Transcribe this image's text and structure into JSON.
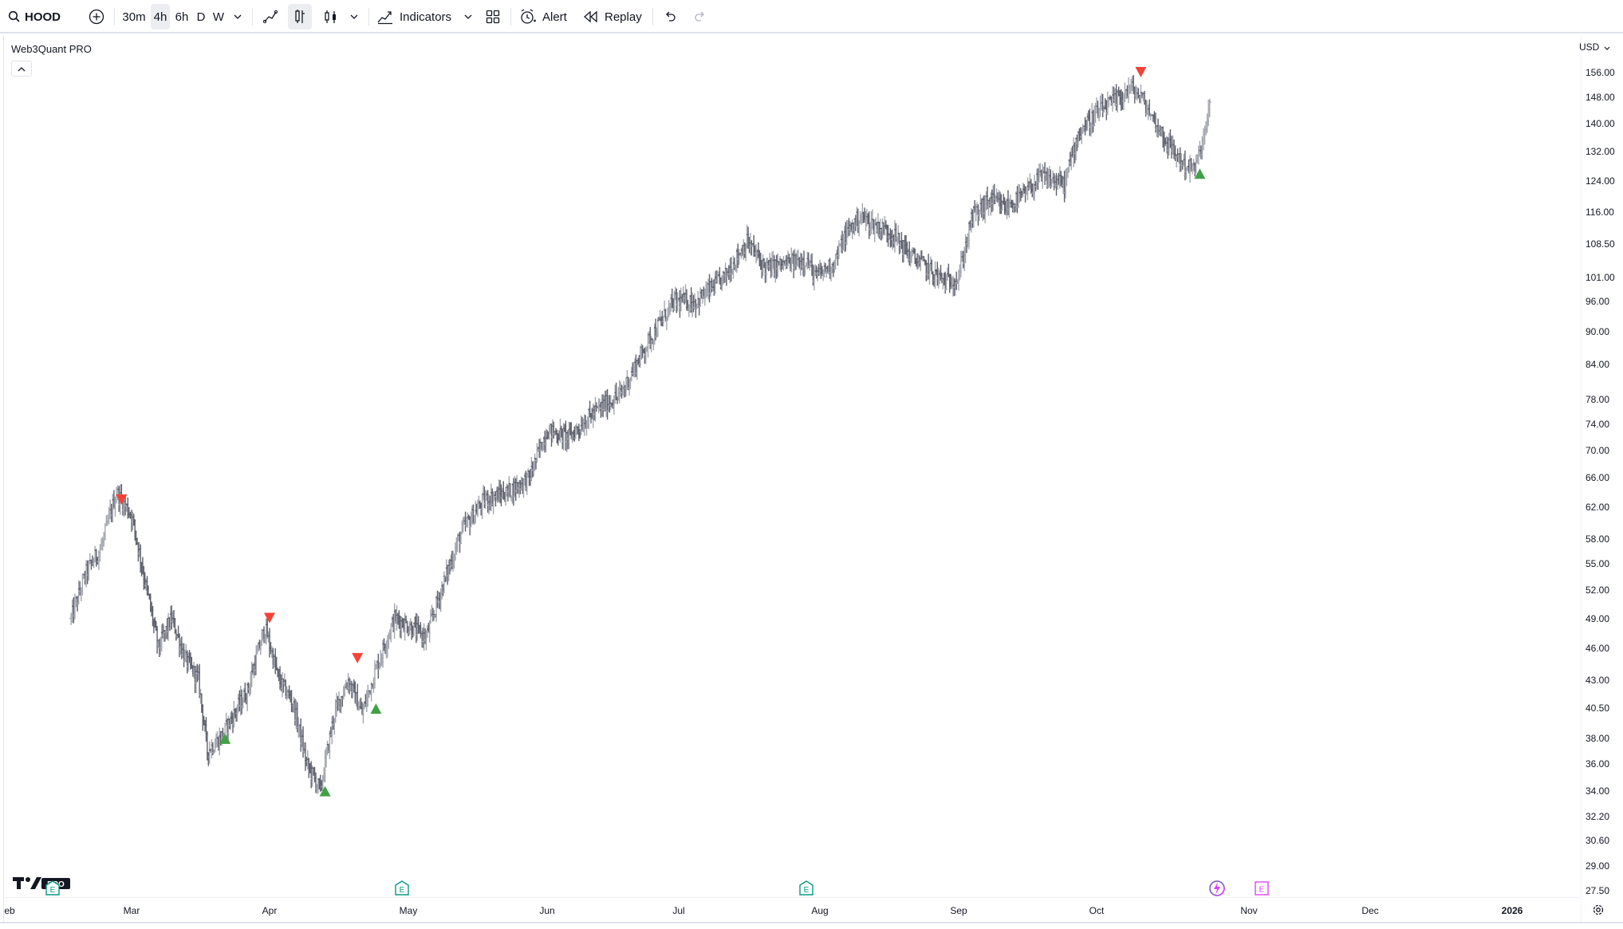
{
  "toolbar": {
    "symbol": "HOOD",
    "intervals": [
      "30m",
      "4h",
      "6h",
      "D",
      "W"
    ],
    "active_interval": "4h",
    "indicators_label": "Indicators",
    "alert_label": "Alert",
    "replay_label": "Replay",
    "icons": [
      "search-icon",
      "add-symbol-icon",
      "chevron-down-icon",
      "line-chart-icon",
      "bar-chart-icon",
      "candle-chart-icon",
      "indicators-icon",
      "layout-icon",
      "alert-clock-icon",
      "replay-icon",
      "undo-icon",
      "redo-icon"
    ]
  },
  "chart": {
    "indicator_title": "Web3Quant PRO",
    "currency": "USD",
    "price_scale": "log",
    "y_ticks": [
      "156.00",
      "148.00",
      "140.00",
      "132.00",
      "124.00",
      "116.00",
      "108.50",
      "101.00",
      "96.00",
      "90.00",
      "84.00",
      "78.00",
      "74.00",
      "70.00",
      "66.00",
      "62.00",
      "58.00",
      "55.00",
      "52.00",
      "49.00",
      "46.00",
      "43.00",
      "40.50",
      "38.00",
      "36.00",
      "34.00",
      "32.20",
      "30.60",
      "29.00",
      "27.50"
    ],
    "x_ticks": [
      "eb",
      "Mar",
      "Apr",
      "May",
      "Jun",
      "Jul",
      "Aug",
      "Sep",
      "Oct",
      "Nov",
      "Dec",
      "2026"
    ],
    "x_ticks_bold": [
      "2026"
    ],
    "logo_text": "PRO",
    "colors": {
      "up_bar": "#a3a6af",
      "down_bar": "#5d606b",
      "buy_signal": "#43a047",
      "sell_signal": "#f44336",
      "earnings": "#089981",
      "earnings_upcoming": "#e040fb"
    },
    "events_icons": [
      "earnings-icon",
      "earnings-icon",
      "earnings-icon",
      "earnings-icon",
      "dividend-split-icon",
      "earnings-icon"
    ]
  },
  "chart_data": {
    "type": "ohlc",
    "series_name": "HOOD 4h",
    "y_scale": "log",
    "ylim": [
      27.5,
      156
    ],
    "x_start": "2025-02-17",
    "x_end": "2025-10-24",
    "anchors": [
      [
        "2025-02-17",
        49
      ],
      [
        "2025-02-20",
        54
      ],
      [
        "2025-02-23",
        57
      ],
      [
        "2025-02-26",
        64
      ],
      [
        "2025-03-01",
        61
      ],
      [
        "2025-03-04",
        53
      ],
      [
        "2025-03-07",
        46
      ],
      [
        "2025-03-10",
        49
      ],
      [
        "2025-03-13",
        45
      ],
      [
        "2025-03-16",
        43
      ],
      [
        "2025-03-18",
        37
      ],
      [
        "2025-03-21",
        38
      ],
      [
        "2025-03-24",
        40
      ],
      [
        "2025-03-27",
        42
      ],
      [
        "2025-03-31",
        48
      ],
      [
        "2025-04-03",
        43
      ],
      [
        "2025-04-06",
        41
      ],
      [
        "2025-04-09",
        36
      ],
      [
        "2025-04-12",
        34
      ],
      [
        "2025-04-15",
        40
      ],
      [
        "2025-04-18",
        43
      ],
      [
        "2025-04-21",
        40
      ],
      [
        "2025-04-24",
        44
      ],
      [
        "2025-04-28",
        49
      ],
      [
        "2025-05-02",
        48
      ],
      [
        "2025-05-05",
        47
      ],
      [
        "2025-05-09",
        53
      ],
      [
        "2025-05-13",
        59
      ],
      [
        "2025-05-18",
        63
      ],
      [
        "2025-05-23",
        64
      ],
      [
        "2025-05-28",
        66
      ],
      [
        "2025-06-01",
        73
      ],
      [
        "2025-06-06",
        72
      ],
      [
        "2025-06-12",
        76
      ],
      [
        "2025-06-18",
        79
      ],
      [
        "2025-06-24",
        88
      ],
      [
        "2025-06-30",
        96
      ],
      [
        "2025-07-05",
        96
      ],
      [
        "2025-07-11",
        101
      ],
      [
        "2025-07-16",
        109
      ],
      [
        "2025-07-20",
        103
      ],
      [
        "2025-07-25",
        104
      ],
      [
        "2025-07-29",
        105
      ],
      [
        "2025-07-31",
        101
      ],
      [
        "2025-08-04",
        104
      ],
      [
        "2025-08-07",
        111
      ],
      [
        "2025-08-10",
        115
      ],
      [
        "2025-08-13",
        113
      ],
      [
        "2025-08-17",
        111
      ],
      [
        "2025-08-21",
        106
      ],
      [
        "2025-08-25",
        103
      ],
      [
        "2025-08-29",
        100
      ],
      [
        "2025-09-01",
        101
      ],
      [
        "2025-09-04",
        115
      ],
      [
        "2025-09-08",
        119
      ],
      [
        "2025-09-11",
        117
      ],
      [
        "2025-09-15",
        120
      ],
      [
        "2025-09-19",
        125
      ],
      [
        "2025-09-24",
        123
      ],
      [
        "2025-09-27",
        137
      ],
      [
        "2025-10-01",
        143
      ],
      [
        "2025-10-05",
        147
      ],
      [
        "2025-10-08",
        151
      ],
      [
        "2025-10-10",
        148
      ],
      [
        "2025-10-13",
        140
      ],
      [
        "2025-10-16",
        133
      ],
      [
        "2025-10-19",
        128
      ],
      [
        "2025-10-21",
        127
      ],
      [
        "2025-10-23",
        137
      ],
      [
        "2025-10-24",
        145
      ]
    ],
    "signals": [
      {
        "type": "sell",
        "date": "2025-02-27",
        "price": 63
      },
      {
        "type": "buy",
        "date": "2025-03-22",
        "price": 38
      },
      {
        "type": "sell",
        "date": "2025-04-01",
        "price": 49
      },
      {
        "type": "buy",
        "date": "2025-04-13",
        "price": 34
      },
      {
        "type": "sell",
        "date": "2025-04-20",
        "price": 45
      },
      {
        "type": "buy",
        "date": "2025-04-24",
        "price": 40.5
      },
      {
        "type": "sell",
        "date": "2025-10-10",
        "price": 156
      },
      {
        "type": "buy",
        "date": "2025-10-22",
        "price": 126
      }
    ]
  }
}
